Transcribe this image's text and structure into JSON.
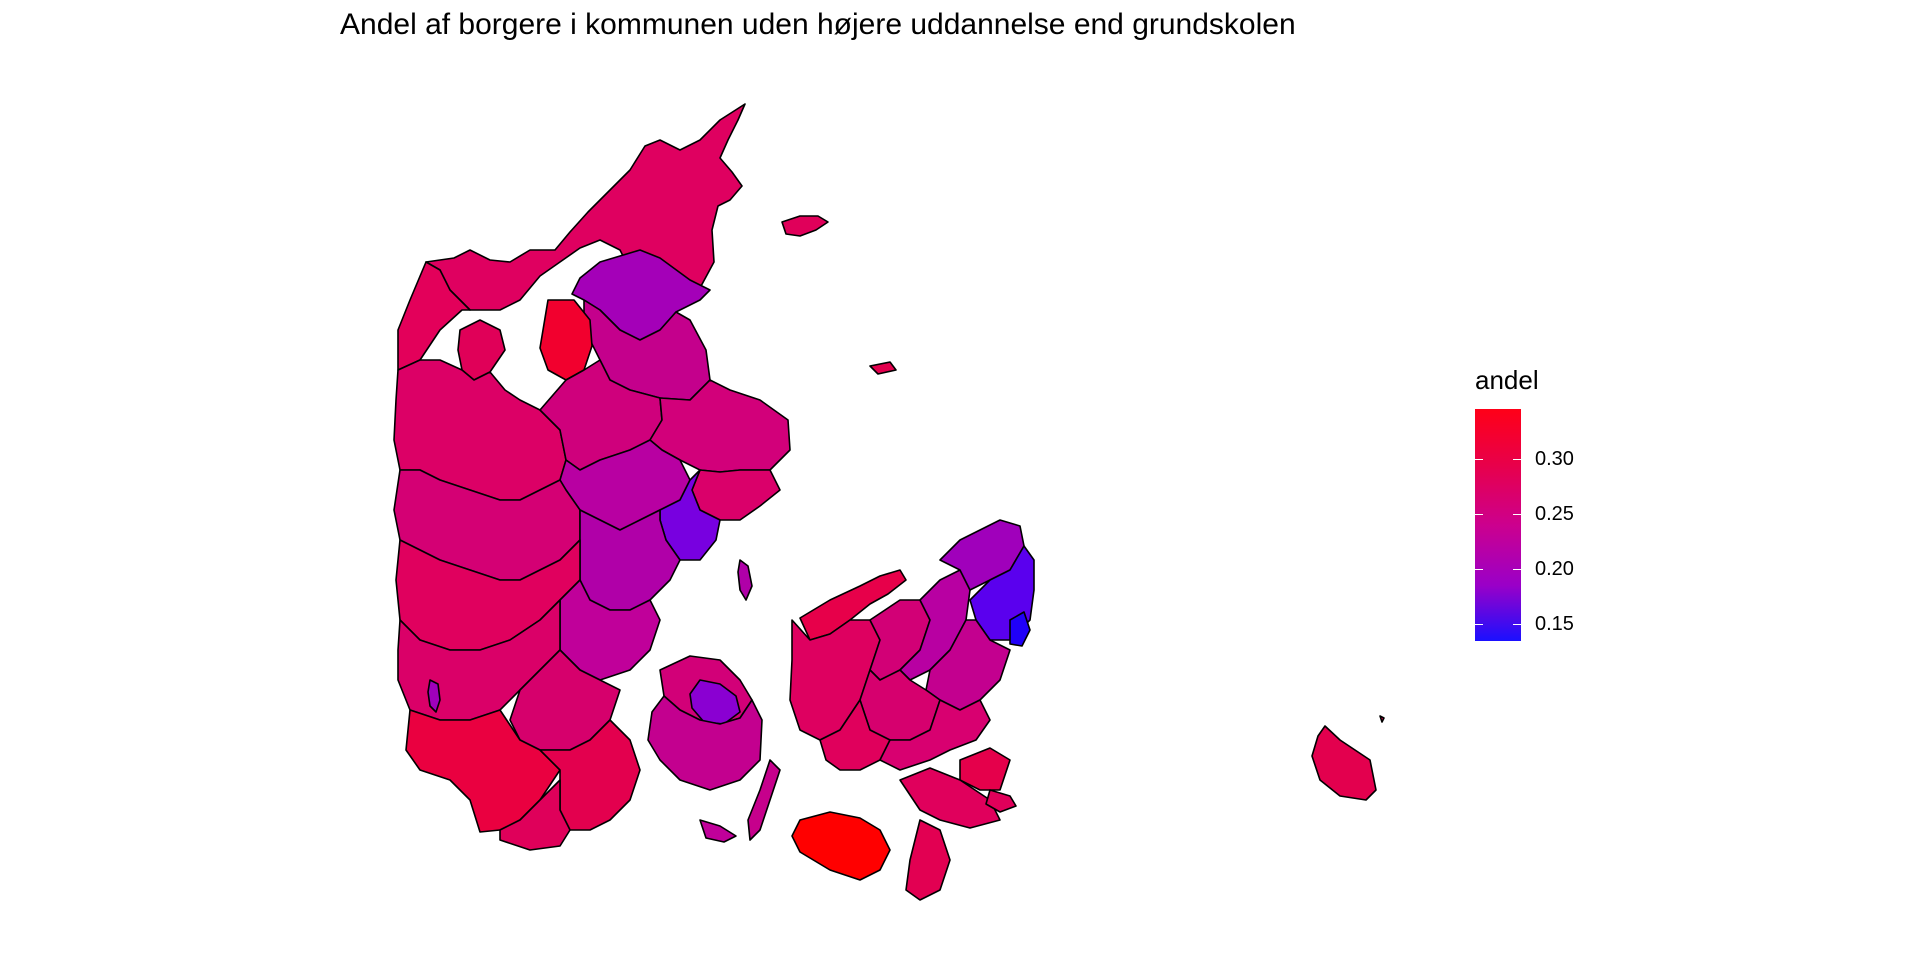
{
  "title": "Andel af borgere i kommunen uden højere uddannelse end grundskolen",
  "legend": {
    "title": "andel",
    "ticks": [
      "0.30",
      "0.25",
      "0.20",
      "0.15"
    ],
    "tick_values": [
      0.3,
      0.25,
      0.2,
      0.15
    ],
    "range": [
      0.135,
      0.345
    ],
    "gradient": [
      "#ff0000",
      "#e8004e",
      "#c8009a",
      "#8f00d2",
      "#0000ff"
    ]
  },
  "colors": {
    "red": "#ff0000",
    "crimson": "#e5004f",
    "magenta": "#d40078",
    "purple": "#b100b0",
    "violet": "#8100dc",
    "blue": "#1b00ff",
    "border": "#000000"
  }
}
